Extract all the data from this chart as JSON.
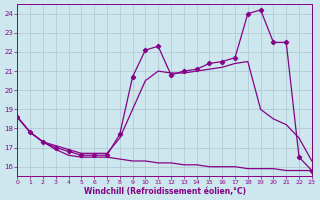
{
  "bg_color": "#cce8ee",
  "grid_color": "#b0c4cc",
  "line_color": "#880088",
  "xlabel": "Windchill (Refroidissement éolien,°C)",
  "xlim": [
    0,
    23
  ],
  "ylim": [
    15.5,
    24.5
  ],
  "yticks": [
    16,
    17,
    18,
    19,
    20,
    21,
    22,
    23,
    24
  ],
  "xticks": [
    0,
    1,
    2,
    3,
    4,
    5,
    6,
    7,
    8,
    9,
    10,
    11,
    12,
    13,
    14,
    15,
    16,
    17,
    18,
    19,
    20,
    21,
    22,
    23
  ],
  "curve_top_x": [
    0,
    1,
    2,
    3,
    4,
    5,
    6,
    7,
    8,
    9,
    10,
    11,
    12,
    13,
    14,
    15,
    16,
    17,
    18,
    19,
    20,
    21,
    22,
    23
  ],
  "curve_top_y": [
    18.6,
    17.8,
    17.3,
    17.0,
    16.8,
    16.6,
    16.6,
    16.6,
    17.7,
    20.7,
    22.1,
    22.3,
    20.8,
    21.0,
    21.1,
    21.4,
    21.5,
    21.7,
    24.0,
    24.2,
    22.5,
    22.5,
    16.5,
    15.8
  ],
  "curve_mid_x": [
    0,
    1,
    2,
    3,
    4,
    5,
    6,
    7,
    8,
    9,
    10,
    11,
    12,
    13,
    14,
    15,
    16,
    17,
    18,
    19,
    20,
    21,
    22,
    23
  ],
  "curve_mid_y": [
    18.6,
    17.8,
    17.3,
    17.1,
    16.9,
    16.7,
    16.7,
    16.7,
    17.5,
    19.0,
    20.5,
    21.0,
    20.9,
    20.9,
    21.0,
    21.1,
    21.2,
    21.4,
    21.5,
    19.0,
    18.5,
    18.2,
    17.5,
    16.3
  ],
  "curve_bot_x": [
    0,
    1,
    2,
    3,
    4,
    5,
    6,
    7,
    8,
    9,
    10,
    11,
    12,
    13,
    14,
    15,
    16,
    17,
    18,
    19,
    20,
    21,
    22,
    23
  ],
  "curve_bot_y": [
    18.6,
    17.8,
    17.3,
    16.9,
    16.6,
    16.5,
    16.5,
    16.5,
    16.4,
    16.3,
    16.3,
    16.2,
    16.2,
    16.1,
    16.1,
    16.0,
    16.0,
    16.0,
    15.9,
    15.9,
    15.9,
    15.8,
    15.8,
    15.8
  ]
}
